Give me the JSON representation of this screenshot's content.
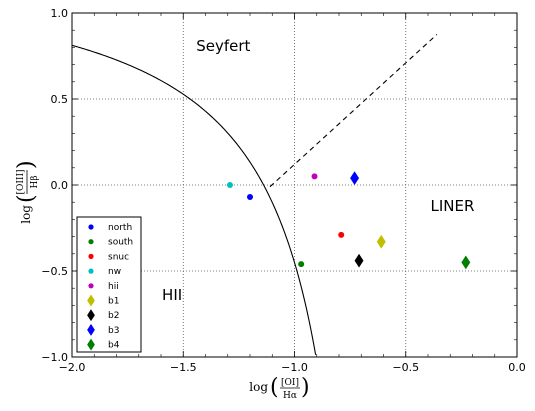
{
  "chart_data": {
    "type": "scatter",
    "title": "",
    "xlabel": {
      "prefix": "log",
      "numerator": "[OI]",
      "denominator": "Hα"
    },
    "ylabel": {
      "prefix": "log",
      "numerator": "[OIII]",
      "denominator": "Hβ"
    },
    "xlim": [
      -2.0,
      0.0
    ],
    "ylim": [
      -1.0,
      1.0
    ],
    "x_ticks": [
      -2.0,
      -1.5,
      -1.0,
      -0.5,
      0.0
    ],
    "x_tick_labels": [
      "−2.0",
      "−1.5",
      "−1.0",
      "−0.5",
      "0.0"
    ],
    "y_ticks": [
      -1.0,
      -0.5,
      0.0,
      0.5,
      1.0
    ],
    "y_tick_labels": [
      "−1.0",
      "−0.5",
      "0.0",
      "0.5",
      "1.0"
    ],
    "grid": true,
    "legend_position": "bottom-left",
    "region_labels": [
      {
        "text": "Seyfert",
        "x": -1.32,
        "y": 0.78
      },
      {
        "text": "LINER",
        "x": -0.29,
        "y": -0.15
      },
      {
        "text": "HII",
        "x": -1.55,
        "y": -0.67
      }
    ],
    "series": [
      {
        "name": "north",
        "marker": "circle",
        "color": "#0000ff",
        "points": [
          [
            -1.2,
            -0.07
          ]
        ]
      },
      {
        "name": "south",
        "marker": "circle",
        "color": "#007f00",
        "points": [
          [
            -0.97,
            -0.46
          ]
        ]
      },
      {
        "name": "snuc",
        "marker": "circle",
        "color": "#ff0000",
        "points": [
          [
            -0.79,
            -0.29
          ]
        ]
      },
      {
        "name": "nw",
        "marker": "circle",
        "color": "#00bfbf",
        "points": [
          [
            -1.29,
            0.0
          ]
        ]
      },
      {
        "name": "hii",
        "marker": "circle",
        "color": "#bf00bf",
        "points": [
          [
            -0.91,
            0.05
          ]
        ]
      },
      {
        "name": "b1",
        "marker": "diamond",
        "color": "#bfbf00",
        "points": [
          [
            -0.61,
            -0.33
          ]
        ]
      },
      {
        "name": "b2",
        "marker": "diamond",
        "color": "#000000",
        "points": [
          [
            -0.71,
            -0.44
          ]
        ]
      },
      {
        "name": "b3",
        "marker": "diamond",
        "color": "#0000ff",
        "points": [
          [
            -0.73,
            0.04
          ]
        ]
      },
      {
        "name": "b4",
        "marker": "diamond",
        "color": "#007f00",
        "points": [
          [
            -0.23,
            -0.45
          ]
        ]
      }
    ],
    "lines": [
      {
        "kind": "solid",
        "curve": "0.73/(x + 0.59) + 1.33",
        "x_range": [
          -2.0,
          -0.9
        ]
      },
      {
        "kind": "dashed",
        "curve": "1.18x + 1.30",
        "x_range": [
          -1.11,
          -0.36
        ]
      }
    ]
  }
}
